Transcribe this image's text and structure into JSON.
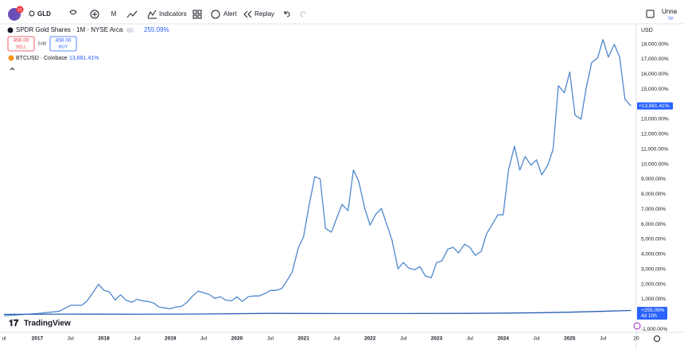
{
  "toolbar": {
    "badge": "11",
    "symbol": "GLD",
    "interval": "M",
    "indicators": "Indicators",
    "alert": "Alert",
    "replay": "Replay",
    "layout_name": "Unna",
    "layout_sub": "Se"
  },
  "legend": {
    "gld_change": "255.09%",
    "sell_price": "456.00",
    "sell": "SELL",
    "spread": "0.00",
    "buy_price": "456.00",
    "buy": "BUY",
    "btc_change": "13,881.41%"
  },
  "price_axis": {
    "currency": "USD",
    "btc_tag": "+13,881.41%",
    "gld_tag": "+255.09%",
    "countdown": "4d 10h"
  },
  "brand": "TradingView",
  "chart_data": {
    "type": "line",
    "series": [
      {
        "name": "BTCUSD · Coinbase",
        "color": "#4f87cc",
        "x": [
          2016.5,
          2017.0,
          2017.33,
          2017.5,
          2017.67,
          2017.75,
          2017.83,
          2017.92,
          2018.0,
          2018.08,
          2018.17,
          2018.25,
          2018.33,
          2018.42,
          2018.5,
          2018.58,
          2018.67,
          2018.75,
          2018.83,
          2018.92,
          2019.0,
          2019.08,
          2019.17,
          2019.25,
          2019.33,
          2019.42,
          2019.5,
          2019.58,
          2019.67,
          2019.75,
          2019.83,
          2019.92,
          2020.0,
          2020.08,
          2020.17,
          2020.25,
          2020.33,
          2020.42,
          2020.5,
          2020.58,
          2020.67,
          2020.75,
          2020.83,
          2020.92,
          2021.0,
          2021.08,
          2021.17,
          2021.25,
          2021.33,
          2021.42,
          2021.5,
          2021.58,
          2021.67,
          2021.75,
          2021.83,
          2021.92,
          2022.0,
          2022.08,
          2022.17,
          2022.25,
          2022.33,
          2022.42,
          2022.5,
          2022.58,
          2022.67,
          2022.75,
          2022.83,
          2022.92,
          2023.0,
          2023.08,
          2023.17,
          2023.25,
          2023.33,
          2023.42,
          2023.5,
          2023.58,
          2023.67,
          2023.75,
          2023.83,
          2023.92,
          2024.0,
          2024.08,
          2024.17,
          2024.25,
          2024.33,
          2024.42,
          2024.5,
          2024.58,
          2024.67,
          2024.75,
          2024.83,
          2024.92,
          2025.0,
          2025.08,
          2025.17,
          2025.25,
          2025.33,
          2025.42,
          2025.5,
          2025.58,
          2025.67,
          2025.75,
          2025.83,
          2025.92
        ],
        "values": [
          -100,
          50,
          200,
          600,
          600,
          900,
          1400,
          2000,
          1600,
          1500,
          950,
          1300,
          950,
          800,
          1000,
          900,
          850,
          750,
          480,
          420,
          370,
          480,
          530,
          800,
          1200,
          1550,
          1430,
          1330,
          1060,
          1170,
          950,
          900,
          1170,
          850,
          1170,
          1220,
          1220,
          1380,
          1590,
          1590,
          1700,
          2230,
          2810,
          4400,
          5150,
          7170,
          9180,
          9020,
          5730,
          5470,
          6420,
          7320,
          6900,
          9610,
          8860,
          7060,
          5940,
          6630,
          7060,
          6000,
          4940,
          3030,
          3450,
          3080,
          2970,
          3180,
          2550,
          2440,
          3450,
          3560,
          4350,
          4460,
          4090,
          4670,
          4460,
          3930,
          4190,
          5360,
          5940,
          6630,
          6630,
          9610,
          11200,
          9610,
          10510,
          9930,
          10300,
          9290,
          9930,
          10990,
          15230,
          14760,
          16140,
          13270,
          13000,
          15130,
          16770,
          17090,
          18310,
          17140,
          17990,
          17140,
          14330,
          13881.41
        ]
      },
      {
        "name": "SPDR Gold Shares · 1M · NYSE Arca",
        "color": "#2b5fb5",
        "x": [
          2016.5,
          2017.5,
          2018.5,
          2019.5,
          2020.5,
          2021.5,
          2022.5,
          2023.5,
          2024.5,
          2025.0,
          2025.5,
          2025.92
        ],
        "values": [
          0,
          10,
          5,
          20,
          60,
          50,
          50,
          60,
          100,
          140,
          200,
          255.09
        ]
      }
    ],
    "xlim": [
      2016.44,
      2026
    ],
    "xticks": [
      {
        "value": 2016.5,
        "label": "ul"
      },
      2017,
      {
        "value": 2017.5,
        "label": "Jul"
      },
      2018,
      {
        "value": 2018.5,
        "label": "Jul"
      },
      2019,
      {
        "value": 2019.5,
        "label": "Jul"
      },
      2020,
      {
        "value": 2020.5,
        "label": "Jul"
      },
      2021,
      {
        "value": 2021.5,
        "label": "Jul"
      },
      2022,
      {
        "value": 2022.5,
        "label": "Jul"
      },
      2023,
      {
        "value": 2023.5,
        "label": "Jul"
      },
      2024,
      {
        "value": 2024.5,
        "label": "Jul"
      },
      2025,
      {
        "value": 2025.5,
        "label": "Jul"
      },
      {
        "value": 2026,
        "label": "20"
      }
    ],
    "ylim": [
      -1200,
      19300
    ],
    "yticks": [
      {
        "value": 18000,
        "label": "18,000.00%"
      },
      {
        "value": 17000,
        "label": "17,000.00%"
      },
      {
        "value": 16000,
        "label": "16,000.00%"
      },
      {
        "value": 15000,
        "label": "15,000.00%"
      },
      {
        "value": 13000,
        "label": "13,000.00%"
      },
      {
        "value": 12000,
        "label": "12,000.00%"
      },
      {
        "value": 11000,
        "label": "11,000.00%"
      },
      {
        "value": 10000,
        "label": "10,000.00%"
      },
      {
        "value": 9000,
        "label": "9,000.00%"
      },
      {
        "value": 8000,
        "label": "8,000.00%"
      },
      {
        "value": 7000,
        "label": "7,000.00%"
      },
      {
        "value": 6000,
        "label": "6,000.00%"
      },
      {
        "value": 5000,
        "label": "5,000.00%"
      },
      {
        "value": 4000,
        "label": "4,000.00%"
      },
      {
        "value": 3000,
        "label": "3,000.00%"
      },
      {
        "value": 2000,
        "label": "2,000.00%"
      },
      {
        "value": 1000,
        "label": "1,000.00%"
      },
      {
        "value": -1000,
        "label": "-1,000.00%"
      }
    ],
    "grid": false
  }
}
